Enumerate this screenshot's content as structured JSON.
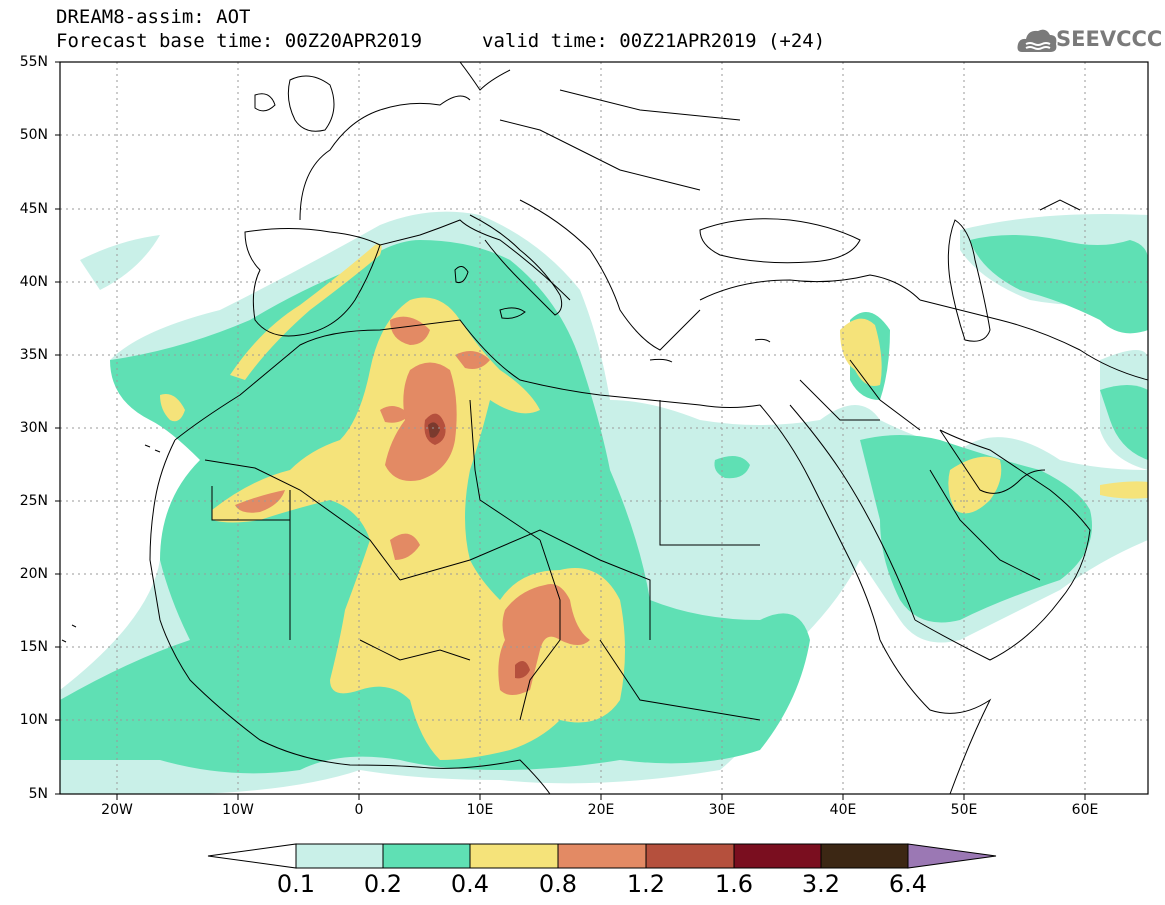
{
  "header": {
    "model": "DREAM8-assim: AOT",
    "base_time": "Forecast base time: 00Z20APR2019",
    "valid_time": "valid time: 00Z21APR2019 (+24)"
  },
  "logo": {
    "text": "SEEVCCC",
    "icon": "cloud-icon"
  },
  "axes": {
    "lat_labels": [
      "55N",
      "50N",
      "45N",
      "40N",
      "35N",
      "30N",
      "25N",
      "20N",
      "15N",
      "10N",
      "5N"
    ],
    "lon_labels": [
      "20W",
      "10W",
      "0",
      "10E",
      "20E",
      "30E",
      "40E",
      "50E",
      "60E"
    ],
    "lat_range": [
      5,
      55
    ],
    "lon_range": [
      -25,
      65
    ]
  },
  "colorbar": {
    "labels": [
      "0.1",
      "0.2",
      "0.4",
      "0.8",
      "1.2",
      "1.6",
      "3.2",
      "6.4"
    ],
    "colors": [
      "#ffffff",
      "#c9f0e8",
      "#5fe0b4",
      "#f5e37a",
      "#e38a64",
      "#b5503d",
      "#7a0e1f",
      "#3c2714",
      "#9b78b4"
    ]
  }
}
